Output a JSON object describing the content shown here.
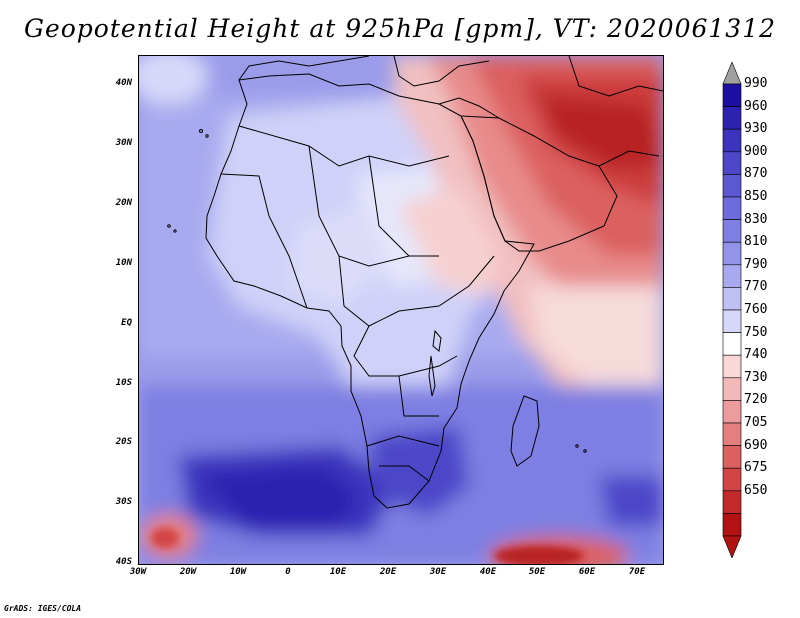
{
  "title": "Geopotential Height at 925hPa [gpm], VT: 2020061312",
  "credit": "GrADS: IGES/COLA",
  "axes": {
    "y_ticks": [
      "40N",
      "30N",
      "20N",
      "10N",
      "EQ",
      "10S",
      "20S",
      "30S",
      "40S"
    ],
    "x_ticks": [
      "30W",
      "20W",
      "10W",
      "0",
      "10E",
      "20E",
      "30E",
      "40E",
      "50E",
      "60E",
      "70E"
    ]
  },
  "colorbar": {
    "levels": [
      "990",
      "960",
      "930",
      "900",
      "870",
      "850",
      "830",
      "810",
      "790",
      "770",
      "760",
      "750",
      "740",
      "730",
      "720",
      "705",
      "690",
      "675",
      "650"
    ],
    "colors": [
      "#1d0fa0",
      "#2b22b0",
      "#3b34bd",
      "#4b47c8",
      "#5b59d2",
      "#6c6cdc",
      "#7d7fe2",
      "#9294e9",
      "#a8aaef",
      "#bfc1f4",
      "#d7d8f9",
      "#ffffff",
      "#f9d7d7",
      "#f3b9b9",
      "#ec9c9c",
      "#e57f7f",
      "#dc6060",
      "#d14444",
      "#c22929",
      "#b31212"
    ],
    "top_arrow_color": "#a0a0a0",
    "bottom_arrow_color": "#b31212"
  },
  "map": {
    "lat_range": [
      -40,
      45
    ],
    "lon_range": [
      -30,
      75
    ],
    "ocean_base_color": "#9a9cea",
    "land_base_color": "#c9caf6"
  }
}
